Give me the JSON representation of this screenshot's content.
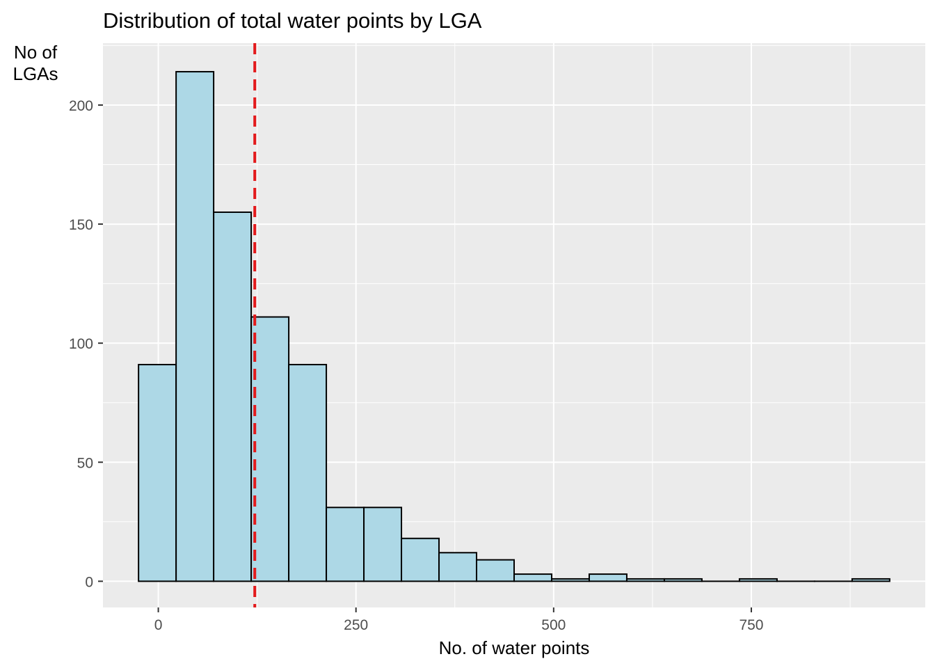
{
  "chart_data": {
    "type": "bar",
    "title": "Distribution of total water points by LGA",
    "xlabel": "No. of water points",
    "ylabel_lines": [
      "No of",
      "LGAs"
    ],
    "xlim": [
      -70,
      970
    ],
    "ylim": [
      -11,
      226
    ],
    "x_ticks": [
      0,
      250,
      500,
      750
    ],
    "y_ticks": [
      0,
      50,
      100,
      150,
      200
    ],
    "bin_width": 47.5,
    "bins": [
      {
        "start": -25,
        "end": 22.5,
        "count": 91
      },
      {
        "start": 22.5,
        "end": 70,
        "count": 214
      },
      {
        "start": 70,
        "end": 117.5,
        "count": 155
      },
      {
        "start": 117.5,
        "end": 165,
        "count": 111
      },
      {
        "start": 165,
        "end": 212.5,
        "count": 91
      },
      {
        "start": 212.5,
        "end": 260,
        "count": 31
      },
      {
        "start": 260,
        "end": 307.5,
        "count": 31
      },
      {
        "start": 307.5,
        "end": 355,
        "count": 18
      },
      {
        "start": 355,
        "end": 402.5,
        "count": 12
      },
      {
        "start": 402.5,
        "end": 450,
        "count": 9
      },
      {
        "start": 450,
        "end": 497.5,
        "count": 3
      },
      {
        "start": 497.5,
        "end": 545,
        "count": 1
      },
      {
        "start": 545,
        "end": 592.5,
        "count": 3
      },
      {
        "start": 592.5,
        "end": 640,
        "count": 1
      },
      {
        "start": 640,
        "end": 687.5,
        "count": 1
      },
      {
        "start": 687.5,
        "end": 735,
        "count": 0
      },
      {
        "start": 735,
        "end": 782.5,
        "count": 1
      },
      {
        "start": 782.5,
        "end": 830,
        "count": 0
      },
      {
        "start": 830,
        "end": 877.5,
        "count": 0
      },
      {
        "start": 877.5,
        "end": 925,
        "count": 1
      }
    ],
    "mean_line": {
      "x": 122
    },
    "grid": true,
    "colors": {
      "panel": "#ebebeb",
      "grid_major": "#ffffff",
      "bar_fill": "#add8e6",
      "bar_stroke": "#000000",
      "mean_line": "#e31a1c",
      "tick_text": "#4d4d4d"
    }
  }
}
